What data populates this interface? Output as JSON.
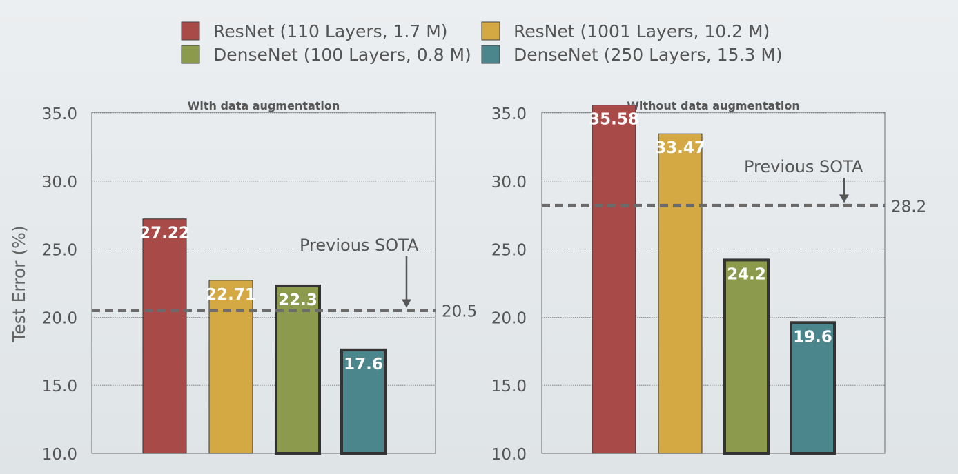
{
  "legend": [
    {
      "label": "ResNet (110 Layers, 1.7 M)",
      "color": "#a84a47"
    },
    {
      "label": "ResNet (1001 Layers, 10.2 M)",
      "color": "#d4a843"
    },
    {
      "label": "DenseNet (100 Layers, 0.8 M)",
      "color": "#8c9a4e"
    },
    {
      "label": "DenseNet (250 Layers, 15.3 M)",
      "color": "#4a868c"
    }
  ],
  "y_axis_label": "Test Error (%)",
  "chart_data": [
    {
      "type": "bar",
      "title": "With data augmentation",
      "ylabel": "Test Error (%)",
      "ylim": [
        10,
        35
      ],
      "yticks": [
        "10.0",
        "15.0",
        "20.0",
        "25.0",
        "30.0",
        "35.0"
      ],
      "grid": true,
      "series": [
        {
          "name": "ResNet (110 Layers, 1.7 M)",
          "value": 27.22,
          "label": "27.22",
          "color": "#a84a47",
          "outlined": false
        },
        {
          "name": "ResNet (1001 Layers, 10.2 M)",
          "value": 22.71,
          "label": "22.71",
          "color": "#d4a843",
          "outlined": false
        },
        {
          "name": "DenseNet (100 Layers, 0.8 M)",
          "value": 22.3,
          "label": "22.3",
          "color": "#8c9a4e",
          "outlined": true
        },
        {
          "name": "DenseNet (250 Layers, 15.3 M)",
          "value": 17.6,
          "label": "17.6",
          "color": "#4a868c",
          "outlined": true
        }
      ],
      "reference_line": {
        "value": 20.5,
        "label": "20.5",
        "annotation": "Previous SOTA"
      }
    },
    {
      "type": "bar",
      "title": "Without data augmentation",
      "ylabel": "",
      "ylim": [
        10,
        35
      ],
      "yticks": [
        "10.0",
        "15.0",
        "20.0",
        "25.0",
        "30.0",
        "35.0"
      ],
      "grid": true,
      "series": [
        {
          "name": "ResNet (110 Layers, 1.7 M)",
          "value": 35.58,
          "label": "35.58",
          "color": "#a84a47",
          "outlined": false
        },
        {
          "name": "ResNet (1001 Layers, 10.2 M)",
          "value": 33.47,
          "label": "33.47",
          "color": "#d4a843",
          "outlined": false
        },
        {
          "name": "DenseNet (100 Layers, 0.8 M)",
          "value": 24.2,
          "label": "24.2",
          "color": "#8c9a4e",
          "outlined": true
        },
        {
          "name": "DenseNet (250 Layers, 15.3 M)",
          "value": 19.6,
          "label": "19.6",
          "color": "#4a868c",
          "outlined": true
        }
      ],
      "reference_line": {
        "value": 28.2,
        "label": "28.2",
        "annotation": "Previous SOTA"
      }
    }
  ]
}
